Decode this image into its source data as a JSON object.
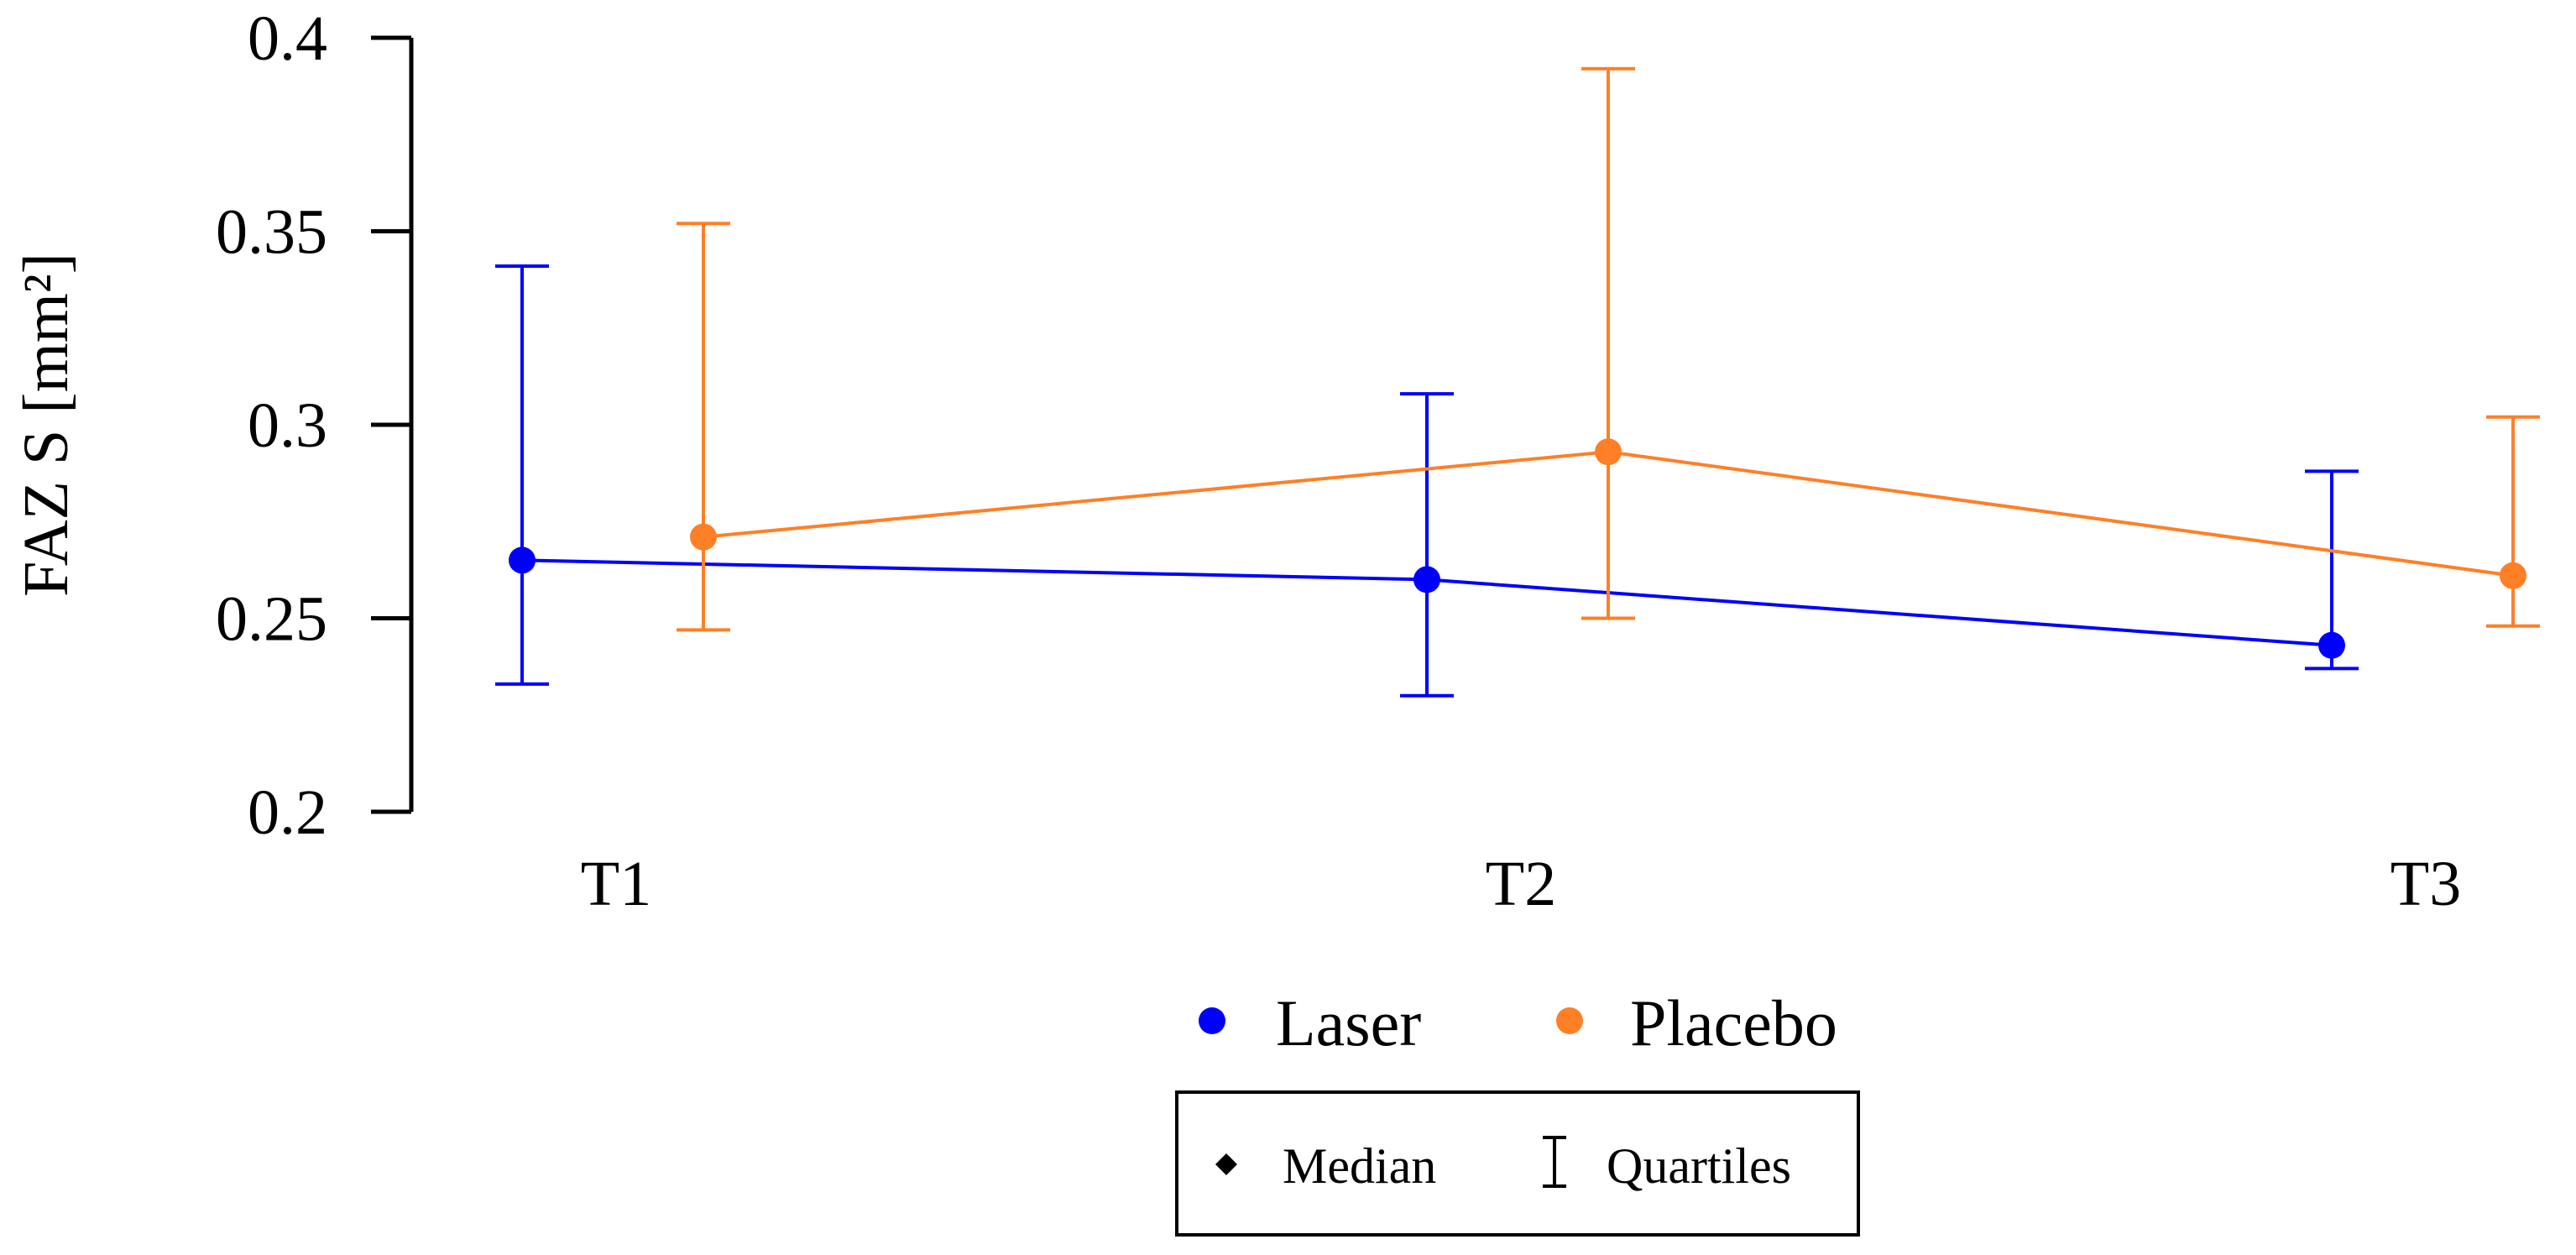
{
  "chart_data": {
    "type": "line",
    "ylabel": "FAZ S [mm²]",
    "xlabel": "",
    "title": "",
    "categories": [
      "T1",
      "T2",
      "T3"
    ],
    "ylim": [
      0.2,
      0.4
    ],
    "yticks": [
      "0.2",
      "0.25",
      "0.3",
      "0.35",
      "0.4"
    ],
    "grid": false,
    "series": [
      {
        "name": "Laser",
        "color": "#0000ff",
        "median": [
          0.265,
          0.26,
          0.243
        ],
        "q1": [
          0.233,
          0.23,
          0.237
        ],
        "q3": [
          0.341,
          0.308,
          0.288
        ]
      },
      {
        "name": "Placebo",
        "color": "#ff7f27",
        "median": [
          0.271,
          0.293,
          0.261
        ],
        "q1": [
          0.247,
          0.25,
          0.248
        ],
        "q3": [
          0.352,
          0.392,
          0.302
        ]
      }
    ],
    "legend": {
      "placement": "bottom",
      "median_label": "Median",
      "quartiles_label": "Quartiles"
    }
  }
}
